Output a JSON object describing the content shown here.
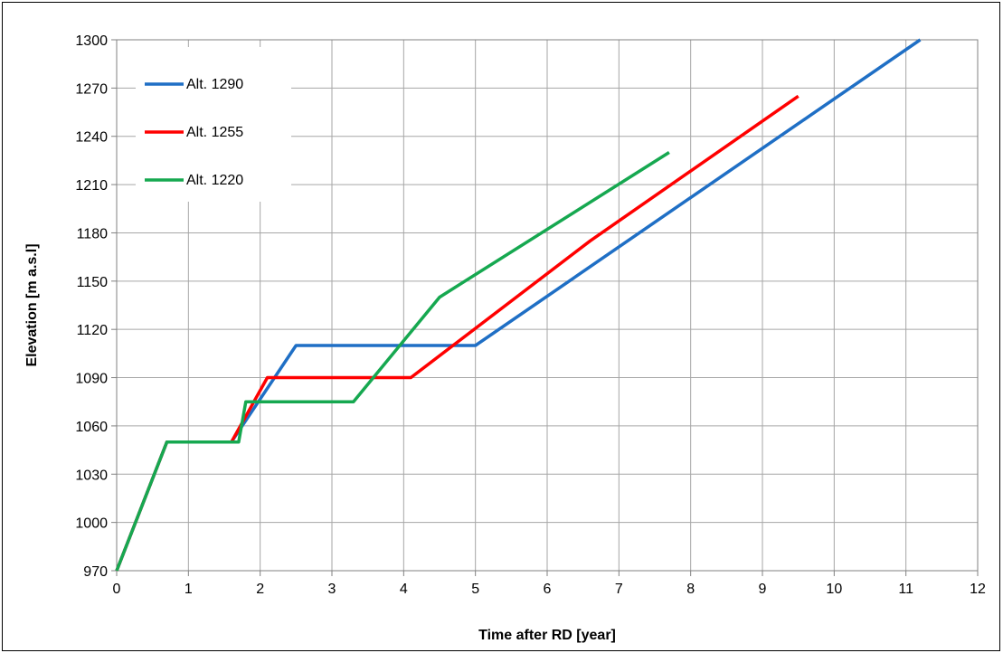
{
  "chart_data": {
    "type": "line",
    "title": "",
    "xlabel": "Time after RD [year]",
    "ylabel": "Elevation [m a.s.l]",
    "xlim": [
      0,
      12
    ],
    "ylim": [
      970,
      1300
    ],
    "xticks": [
      0,
      1,
      2,
      3,
      4,
      5,
      6,
      7,
      8,
      9,
      10,
      11,
      12
    ],
    "yticks": [
      970,
      1000,
      1030,
      1060,
      1090,
      1120,
      1150,
      1180,
      1210,
      1240,
      1270,
      1300
    ],
    "grid": true,
    "legend_position": "top-left",
    "series": [
      {
        "name": "Alt. 1290",
        "color": "#1f6fc5",
        "points": [
          [
            0,
            970
          ],
          [
            0.7,
            1050
          ],
          [
            1.6,
            1050
          ],
          [
            2.5,
            1110
          ],
          [
            5.0,
            1110
          ],
          [
            11.2,
            1300
          ]
        ]
      },
      {
        "name": "Alt. 1255",
        "color": "#ff0000",
        "points": [
          [
            0,
            970
          ],
          [
            0.7,
            1050
          ],
          [
            1.6,
            1050
          ],
          [
            2.1,
            1090
          ],
          [
            4.1,
            1090
          ],
          [
            6.6,
            1175
          ],
          [
            9.5,
            1265
          ]
        ]
      },
      {
        "name": "Alt. 1220",
        "color": "#16a850",
        "points": [
          [
            0,
            970
          ],
          [
            0.7,
            1050
          ],
          [
            1.7,
            1050
          ],
          [
            1.8,
            1075
          ],
          [
            3.3,
            1075
          ],
          [
            4.5,
            1140
          ],
          [
            7.7,
            1230
          ]
        ]
      }
    ]
  }
}
